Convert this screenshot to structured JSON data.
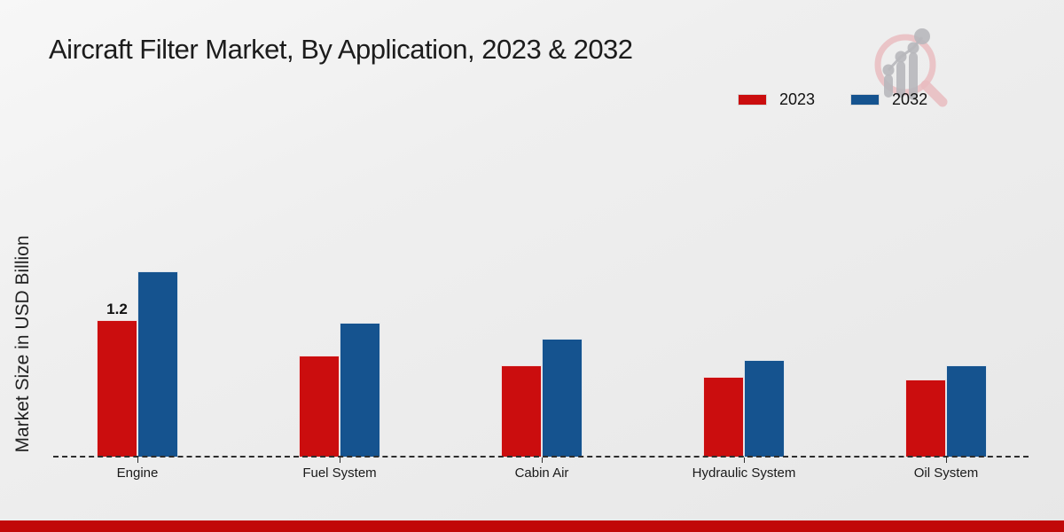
{
  "header": {
    "title": "Aircraft Filter Market, By Application, 2023 & 2032"
  },
  "legend": {
    "items": [
      {
        "label": "2023",
        "color": "#cb0d0e"
      },
      {
        "label": "2032",
        "color": "#15538f"
      }
    ]
  },
  "chart_data": {
    "type": "bar",
    "title": "Aircraft Filter Market, By Application, 2023 & 2032",
    "xlabel": "",
    "ylabel": "Market Size in USD Billion",
    "categories": [
      "Engine",
      "Fuel System",
      "Cabin Air",
      "Hydraulic System",
      "Oil System"
    ],
    "series": [
      {
        "name": "2023",
        "color": "#cb0d0e",
        "values": [
          1.2,
          0.89,
          0.8,
          0.7,
          0.68
        ]
      },
      {
        "name": "2032",
        "color": "#15538f",
        "values": [
          1.63,
          1.18,
          1.04,
          0.85,
          0.8
        ]
      }
    ],
    "bar_labels": [
      {
        "series_index": 0,
        "category_index": 0,
        "text": "1.2"
      }
    ],
    "ylim": [
      0,
      1.75
    ],
    "grid": false,
    "legend_position": "top-right",
    "baseline_style": "dashed",
    "accent_colors": {
      "footer_band": "#c10808",
      "axis": "#2e2e2e"
    }
  },
  "watermark": {
    "name": "market-research-magnifier-logo"
  }
}
